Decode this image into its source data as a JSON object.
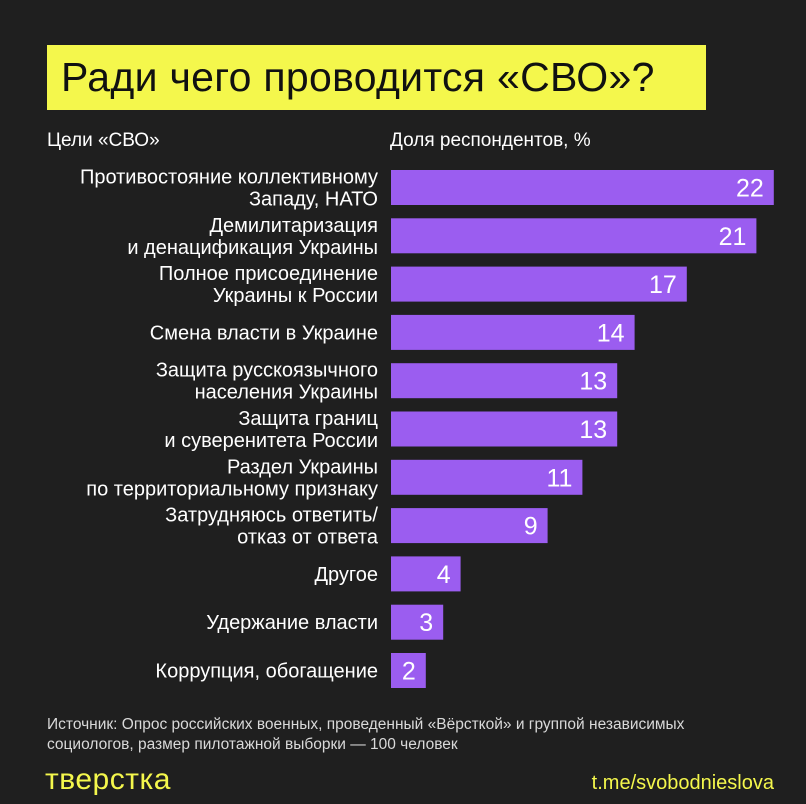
{
  "title": "Ради чего проводится «СВО»?",
  "col_left": "Цели «СВО»",
  "col_right": "Доля респондентов, %",
  "chart_data": {
    "type": "bar",
    "orientation": "horizontal",
    "categories": [
      [
        "Противостояние коллективному",
        "Западу, НАТО"
      ],
      [
        "Демилитаризация",
        "и денацификация Украины"
      ],
      [
        "Полное присоединение",
        "Украины к России"
      ],
      [
        "Смена власти в Украине"
      ],
      [
        "Защита русскоязычного",
        "населения Украины"
      ],
      [
        "Защита границ",
        "и суверенитета России"
      ],
      [
        "Раздел Украины",
        "по территориальному признаку"
      ],
      [
        "Затрудняюсь ответить/",
        "отказ от ответа"
      ],
      [
        "Другое"
      ],
      [
        "Удержание власти"
      ],
      [
        "Коррупция, обогащение"
      ]
    ],
    "values": [
      22,
      21,
      17,
      14,
      13,
      13,
      11,
      9,
      4,
      3,
      2
    ],
    "bar_color": "#9b5df0"
  },
  "source": "Источник: Опрос российских военных, проведенный «Вёрсткой» и группой независимых социологов, размер пилотажной выборки — 100 человек",
  "brand": "тверстка",
  "channel": "t.me/svobodnieslova",
  "colors": {
    "background": "#1f1f1f",
    "accent_yellow": "#f4f74c",
    "bar_purple": "#9b5df0"
  }
}
